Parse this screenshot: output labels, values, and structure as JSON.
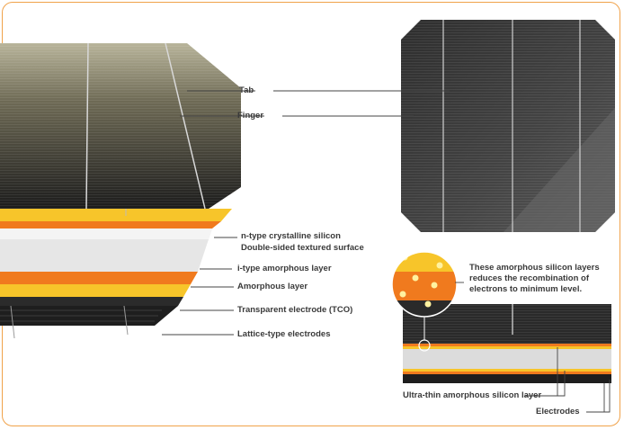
{
  "colors": {
    "frame": "#f0a24a",
    "yellow_layer": "#f7c52a",
    "orange_layer": "#f07a1e",
    "white_layer": "#e6e6e6",
    "dark_layer": "#202020"
  },
  "labels": {
    "tab": "Tab",
    "finger": "Finger",
    "n_type_line1": "n-type crystalline silicon",
    "n_type_line2": "Double-sided textured surface",
    "i_type": "i-type amorphous layer",
    "amorphous": "Amorphous layer",
    "tco": "Transparent electrode (TCO)",
    "lattice": "Lattice-type electrodes",
    "callout_line1": "These amorphous silicon layers",
    "callout_line2": "reduces the recombination of",
    "callout_line3": "electrons to minimum level.",
    "ultra_thin": "Ultra-thin amorphous silicon layer",
    "electrodes": "Electrodes"
  }
}
